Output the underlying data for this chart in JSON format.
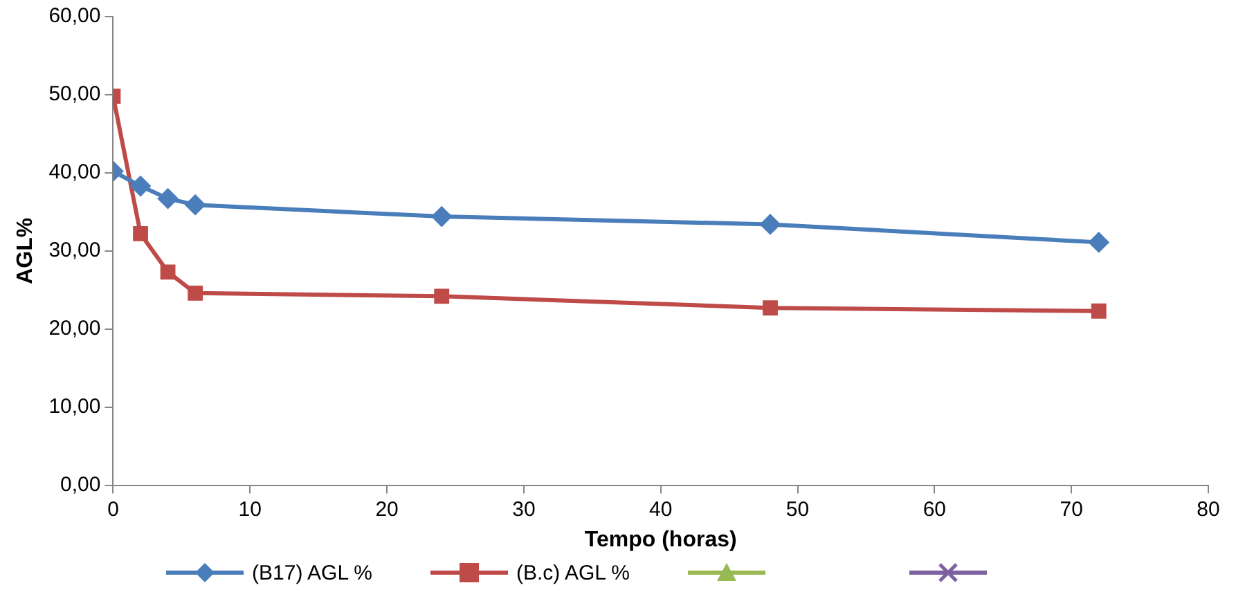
{
  "chart_data": {
    "type": "line",
    "xlabel": "Tempo (horas)",
    "ylabel": "AGL%",
    "x": [
      0,
      2,
      4,
      6,
      24,
      48,
      72
    ],
    "series": [
      {
        "name": "(B17) AGL %",
        "color": "#4a7ebb",
        "marker": "diamond",
        "values": [
          40.2,
          38.3,
          36.7,
          35.9,
          34.4,
          33.4,
          31.1
        ]
      },
      {
        "name": "(B.c) AGL %",
        "color": "#be4b48",
        "marker": "square",
        "values": [
          49.8,
          32.2,
          27.3,
          24.6,
          24.2,
          22.7,
          22.3
        ]
      },
      {
        "color": "#98b954",
        "marker": "triangle",
        "values": [
          null,
          null,
          null,
          null,
          null,
          null,
          null
        ]
      },
      {
        "color": "#7d60a0",
        "marker": "cross",
        "values": [
          null,
          null,
          null,
          null,
          null,
          null,
          null
        ]
      }
    ],
    "xlim": [
      0,
      80
    ],
    "xticks": [
      0,
      10,
      20,
      30,
      40,
      50,
      60,
      70,
      80
    ],
    "ylim": [
      0,
      60
    ],
    "yticks": [
      {
        "value": 0,
        "label": "0,00"
      },
      {
        "value": 10,
        "label": "10,00"
      },
      {
        "value": 20,
        "label": "20,00"
      },
      {
        "value": 30,
        "label": "30,00"
      },
      {
        "value": 40,
        "label": "40,00"
      },
      {
        "value": 50,
        "label": "50,00"
      },
      {
        "value": 60,
        "label": "60,00"
      }
    ],
    "grid": false,
    "legend": "bottom",
    "line_style": "solid"
  }
}
